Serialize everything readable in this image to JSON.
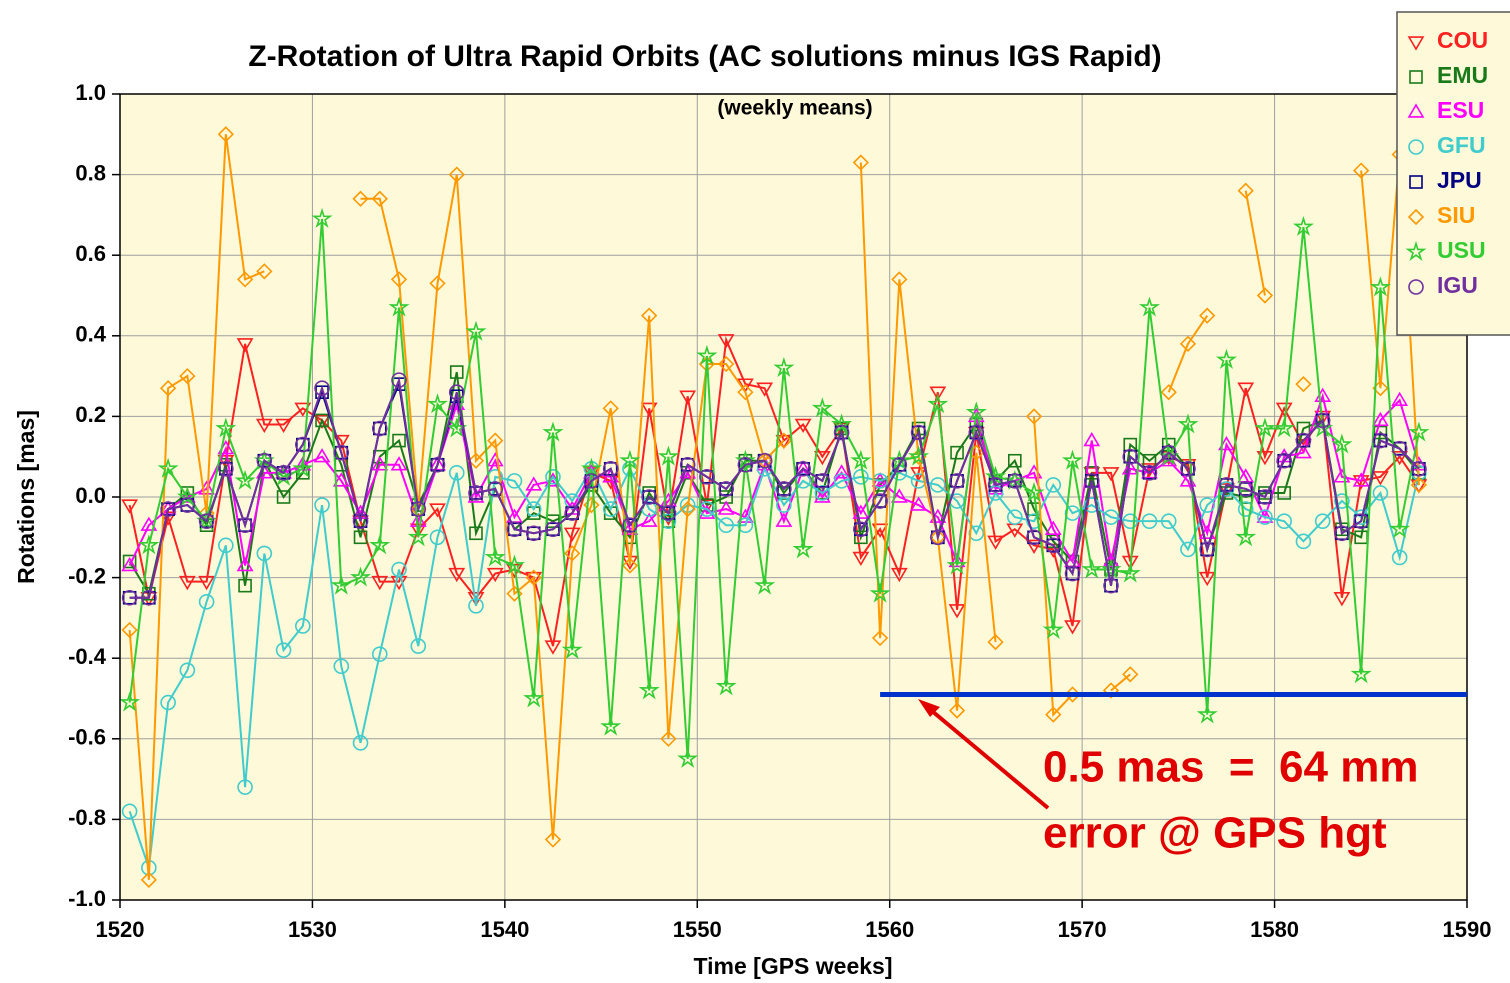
{
  "chart_data": {
    "type": "line",
    "title": "Z-Rotation of Ultra Rapid Orbits (AC solutions minus IGS Rapid)",
    "subtitle": "(weekly means)",
    "x_label": "Time [GPS weeks]",
    "y_label": "Rotations [mas]",
    "xlim": [
      1520,
      1590
    ],
    "xticks": [
      1520,
      1530,
      1540,
      1550,
      1560,
      1570,
      1580,
      1590
    ],
    "ylim": [
      -1.0,
      1.0
    ],
    "yticks": [
      {
        "value": -1.0,
        "label": "-1.0"
      },
      -0.8,
      -0.6,
      -0.4,
      -0.2,
      {
        "value": 0.0,
        "label": "0.0"
      },
      0.2,
      0.4,
      0.6,
      0.8,
      {
        "value": 1.0,
        "label": "1.0"
      }
    ],
    "grid": true,
    "legend": "outside-top-right",
    "x": [
      1520.5,
      1521.5,
      1522.5,
      1523.5,
      1524.5,
      1525.5,
      1526.5,
      1527.5,
      1528.5,
      1529.5,
      1530.5,
      1531.5,
      1532.5,
      1533.5,
      1534.5,
      1535.5,
      1536.5,
      1537.5,
      1538.5,
      1539.5,
      1540.5,
      1541.5,
      1542.5,
      1543.5,
      1544.5,
      1545.5,
      1546.5,
      1547.5,
      1548.5,
      1549.5,
      1550.5,
      1551.5,
      1552.5,
      1553.5,
      1554.5,
      1555.5,
      1556.5,
      1557.5,
      1558.5,
      1559.5,
      1560.5,
      1561.5,
      1562.5,
      1563.5,
      1564.5,
      1565.5,
      1566.5,
      1567.5,
      1568.5,
      1569.5,
      1570.5,
      1571.5,
      1572.5,
      1573.5,
      1574.5,
      1575.5,
      1576.5,
      1577.5,
      1578.5,
      1579.5,
      1580.5,
      1581.5,
      1582.5,
      1583.5,
      1584.5,
      1585.5,
      1586.5,
      1587.5
    ],
    "series": [
      {
        "name": "COU",
        "color": "#ff2020",
        "marker": "triangle-down",
        "values": [
          -0.02,
          -0.25,
          -0.05,
          -0.21,
          -0.21,
          0.09,
          0.38,
          0.18,
          0.18,
          0.22,
          0.19,
          0.14,
          -0.06,
          -0.21,
          -0.21,
          -0.08,
          -0.03,
          -0.19,
          -0.25,
          -0.19,
          -0.18,
          -0.2,
          -0.37,
          -0.09,
          0.06,
          0.04,
          -0.16,
          0.22,
          -0.05,
          0.25,
          -0.02,
          0.39,
          0.28,
          0.27,
          0.14,
          0.18,
          0.1,
          0.17,
          -0.15,
          -0.08,
          -0.19,
          0.06,
          0.26,
          -0.28,
          0.16,
          -0.11,
          -0.08,
          -0.12,
          -0.13,
          -0.32,
          0.06,
          0.06,
          -0.16,
          0.07,
          0.1,
          0.08,
          -0.2,
          0.02,
          0.27,
          0.1,
          0.22,
          0.13,
          0.2,
          -0.25,
          0.04,
          0.05,
          0.1,
          0.03
        ]
      },
      {
        "name": "EMU",
        "color": "#1a7a1a",
        "marker": "square",
        "values": [
          -0.16,
          -0.24,
          -0.03,
          0.01,
          -0.07,
          0.08,
          -0.22,
          0.09,
          0.0,
          0.06,
          0.19,
          0.08,
          -0.1,
          0.1,
          0.14,
          -0.02,
          0.08,
          0.31,
          -0.09,
          0.02,
          -0.08,
          -0.04,
          -0.06,
          -0.04,
          0.03,
          -0.04,
          -0.1,
          0.01,
          -0.06,
          0.06,
          -0.02,
          0.0,
          0.09,
          0.09,
          0.01,
          0.07,
          0.01,
          0.17,
          -0.1,
          0.03,
          0.08,
          0.17,
          -0.1,
          0.11,
          0.18,
          0.04,
          0.09,
          -0.03,
          -0.11,
          -0.16,
          0.06,
          -0.18,
          0.13,
          0.09,
          0.13,
          0.07,
          -0.13,
          0.01,
          0.0,
          0.01,
          0.01,
          0.17,
          0.19,
          -0.08,
          -0.1,
          0.16,
          0.12,
          0.06
        ]
      },
      {
        "name": "ESU",
        "color": "#ff00ff",
        "marker": "triangle-up",
        "values": [
          -0.17,
          -0.07,
          -0.03,
          0.0,
          0.02,
          0.12,
          -0.17,
          0.06,
          0.06,
          0.08,
          0.1,
          0.04,
          -0.04,
          0.08,
          0.08,
          -0.06,
          0.08,
          0.23,
          0.0,
          0.09,
          -0.05,
          0.03,
          0.04,
          -0.03,
          0.06,
          0.05,
          -0.08,
          -0.06,
          -0.01,
          0.06,
          -0.04,
          -0.03,
          -0.05,
          0.08,
          -0.06,
          0.07,
          0.0,
          0.06,
          -0.04,
          0.04,
          0.0,
          -0.02,
          -0.05,
          -0.16,
          0.2,
          0.02,
          0.04,
          0.06,
          -0.08,
          -0.16,
          0.14,
          -0.16,
          0.07,
          0.06,
          0.09,
          0.04,
          -0.09,
          0.13,
          0.05,
          -0.05,
          0.1,
          0.11,
          0.25,
          0.05,
          0.04,
          0.19,
          0.24,
          0.08
        ]
      },
      {
        "name": "GFU",
        "color": "#40cccc",
        "marker": "circle",
        "values": [
          -0.78,
          -0.92,
          -0.51,
          -0.43,
          -0.26,
          -0.12,
          -0.72,
          -0.14,
          -0.38,
          -0.32,
          -0.02,
          -0.42,
          -0.61,
          -0.39,
          -0.18,
          -0.37,
          -0.1,
          0.06,
          -0.27,
          0.05,
          0.04,
          -0.03,
          0.05,
          -0.01,
          0.07,
          -0.03,
          0.07,
          -0.03,
          -0.06,
          -0.02,
          -0.03,
          -0.07,
          -0.07,
          0.07,
          -0.02,
          0.04,
          0.01,
          0.04,
          0.05,
          0.04,
          0.06,
          0.04,
          0.03,
          -0.01,
          -0.09,
          0.01,
          -0.05,
          -0.06,
          0.03,
          -0.04,
          -0.02,
          -0.05,
          -0.06,
          -0.06,
          -0.06,
          -0.13,
          -0.02,
          0.02,
          -0.03,
          -0.05,
          -0.06,
          -0.11,
          -0.06,
          -0.01,
          -0.05,
          0.01,
          -0.15,
          0.06
        ]
      },
      {
        "name": "JPU",
        "color": "#000080",
        "marker": "square",
        "values": [
          -0.25,
          -0.25,
          -0.03,
          -0.02,
          -0.06,
          0.07,
          -0.07,
          0.09,
          0.06,
          0.13,
          0.26,
          0.11,
          -0.06,
          0.17,
          0.28,
          -0.03,
          0.08,
          0.25,
          0.01,
          0.02,
          -0.08,
          -0.09,
          -0.08,
          -0.04,
          0.04,
          0.07,
          -0.07,
          0.0,
          -0.04,
          0.08,
          0.05,
          0.02,
          0.08,
          0.09,
          0.02,
          0.07,
          0.04,
          0.16,
          -0.08,
          -0.01,
          0.08,
          0.16,
          -0.1,
          0.04,
          0.16,
          0.03,
          0.04,
          -0.1,
          -0.12,
          -0.19,
          0.04,
          -0.22,
          0.1,
          0.06,
          0.11,
          0.07,
          -0.13,
          0.03,
          0.02,
          0.0,
          0.09,
          0.14,
          0.19,
          -0.09,
          -0.06,
          0.14,
          0.12,
          0.07
        ]
      },
      {
        "name": "SIU",
        "color": "#ff9900",
        "marker": "diamond",
        "values": [
          -0.33,
          -0.95,
          0.27,
          0.3,
          -0.04,
          0.9,
          0.54,
          0.56,
          null,
          null,
          null,
          null,
          0.74,
          0.74,
          0.54,
          -0.03,
          0.53,
          0.8,
          0.09,
          0.14,
          -0.24,
          -0.2,
          -0.85,
          -0.14,
          -0.02,
          0.22,
          -0.17,
          0.45,
          -0.6,
          -0.03,
          0.33,
          0.33,
          0.26,
          0.09,
          0.14,
          null,
          null,
          null,
          0.83,
          -0.35,
          0.54,
          0.1,
          -0.1,
          -0.53,
          0.11,
          -0.36,
          null,
          0.2,
          -0.54,
          -0.49,
          null,
          -0.48,
          -0.44,
          null,
          0.26,
          0.38,
          0.45,
          null,
          0.76,
          0.5,
          null,
          0.28,
          null,
          null,
          0.81,
          0.27,
          0.85,
          0.03
        ]
      },
      {
        "name": "USU",
        "color": "#33cc33",
        "marker": "star",
        "values": [
          -0.51,
          -0.12,
          0.07,
          0.0,
          -0.06,
          0.17,
          0.04,
          0.09,
          0.05,
          0.07,
          0.69,
          -0.22,
          -0.2,
          -0.12,
          0.47,
          -0.1,
          0.23,
          0.17,
          0.41,
          -0.15,
          -0.17,
          -0.5,
          0.16,
          -0.38,
          0.07,
          -0.57,
          0.09,
          -0.48,
          0.1,
          -0.65,
          0.35,
          -0.47,
          0.09,
          -0.22,
          0.32,
          -0.13,
          0.22,
          0.18,
          0.09,
          -0.24,
          0.09,
          0.1,
          0.23,
          -0.17,
          0.21,
          0.05,
          0.04,
          0.01,
          -0.33,
          0.09,
          -0.18,
          -0.18,
          -0.19,
          0.47,
          0.1,
          0.18,
          -0.54,
          0.34,
          -0.1,
          0.17,
          0.17,
          0.67,
          0.17,
          0.13,
          -0.44,
          0.52,
          -0.08,
          0.16
        ]
      },
      {
        "name": "IGU",
        "color": "#7030a0",
        "marker": "circle",
        "values": [
          -0.25,
          -0.25,
          -0.03,
          -0.02,
          -0.06,
          0.07,
          -0.07,
          0.09,
          0.06,
          0.13,
          0.27,
          0.11,
          -0.06,
          0.17,
          0.29,
          -0.03,
          0.08,
          0.26,
          0.01,
          0.02,
          -0.08,
          -0.09,
          -0.08,
          -0.04,
          0.04,
          0.07,
          -0.07,
          0.0,
          -0.04,
          0.08,
          0.05,
          0.02,
          0.08,
          0.09,
          0.02,
          0.07,
          0.04,
          0.16,
          -0.08,
          -0.01,
          0.08,
          0.16,
          -0.1,
          0.04,
          0.16,
          0.03,
          0.04,
          -0.1,
          -0.12,
          -0.19,
          0.04,
          -0.22,
          0.1,
          0.06,
          0.11,
          0.07,
          -0.13,
          0.03,
          0.02,
          0.0,
          0.09,
          0.14,
          0.19,
          -0.09,
          -0.06,
          0.14,
          0.12,
          0.07
        ]
      }
    ],
    "reference_line": {
      "y": -0.49,
      "xlim": [
        1559.5,
        1590
      ],
      "color": "#0033cc"
    },
    "annotations": [
      "0.5 mas  =  64 mm",
      "error @ GPS hgt"
    ]
  }
}
